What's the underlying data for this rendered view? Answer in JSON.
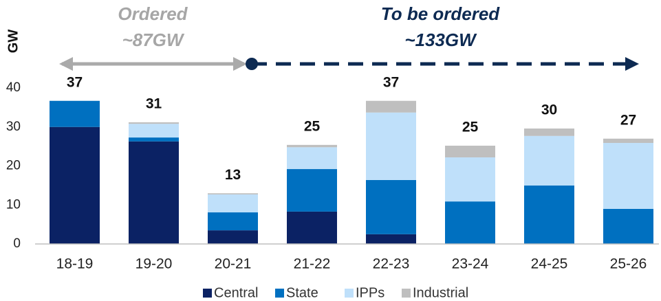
{
  "chart_data": {
    "type": "stacked_bar",
    "y_label": "GW",
    "annotations": [
      [
        "Ordered",
        "~87GW"
      ],
      [
        "To be ordered",
        "~133GW"
      ]
    ],
    "categories": [
      "18-19",
      "19-20",
      "20-21",
      "21-22",
      "22-23",
      "23-24",
      "24-25",
      "25-26"
    ],
    "series": [
      {
        "name": "Central",
        "color": "#0b2264",
        "values": [
          30,
          26.3,
          3.5,
          8.3,
          2.5,
          0,
          0,
          0
        ]
      },
      {
        "name": "State",
        "color": "#0070c0",
        "values": [
          6.7,
          1,
          4.6,
          10.9,
          13.9,
          10.9,
          15,
          9
        ]
      },
      {
        "name": "IPPs",
        "color": "#bfe0fa",
        "values": [
          0,
          3.5,
          4.6,
          5.6,
          17.3,
          11.3,
          12.7,
          16.9
        ]
      },
      {
        "name": "Industrial",
        "color": "#bfbfbf",
        "values": [
          0,
          0.4,
          0.3,
          0.6,
          3,
          3,
          1.9,
          1.1
        ]
      }
    ],
    "totals": [
      37,
      31,
      13,
      25,
      37,
      25,
      30,
      27
    ],
    "ylim": [
      0,
      40
    ],
    "yticks": [
      0,
      10,
      20,
      30,
      40
    ],
    "grid": false,
    "legend": "bottom"
  }
}
